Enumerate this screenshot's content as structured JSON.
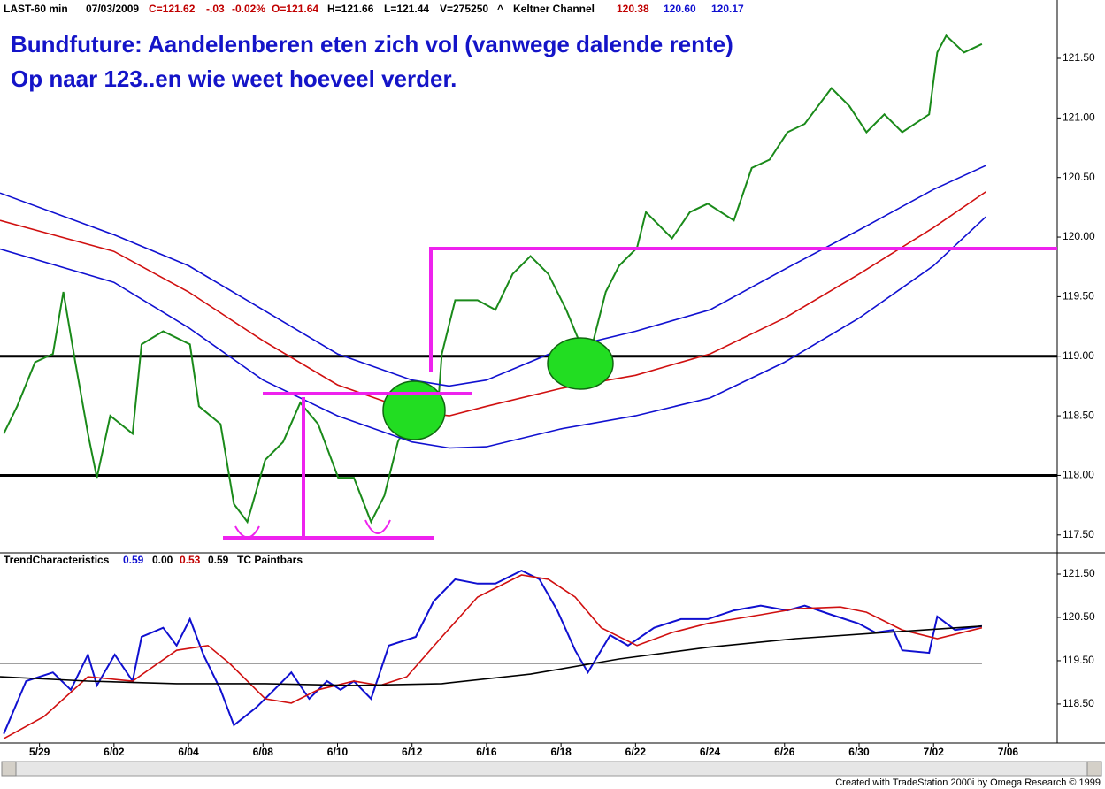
{
  "header": {
    "symbol": "LAST-60 min",
    "date": "07/03/2009",
    "close": "C=121.62",
    "change": "-.03",
    "change_pct": "-0.02%",
    "open": "O=121.64",
    "high": "H=121.66",
    "low": "L=121.44",
    "volume": "V=275250",
    "marker": "^",
    "study": "Keltner Channel",
    "mid": "120.38",
    "upper": "120.60",
    "lower": "120.17"
  },
  "chart_data": [
    {
      "type": "line",
      "annotations": [
        "Bundfuture: Aandelenberen eten zich vol (vanwege dalende rente)",
        "Op naar 123..en wie weet hoeveel verder."
      ],
      "xlim": [
        -0.53,
        13.66
      ],
      "ylim": [
        117.35,
        121.99
      ],
      "yticks": [
        {
          "value": 117.5,
          "label": "117.50"
        },
        {
          "value": 118,
          "label": "118.00"
        },
        {
          "value": 118.5,
          "label": "118.50"
        },
        {
          "value": 119,
          "label": "119.00"
        },
        {
          "value": 119.5,
          "label": "119.50"
        },
        {
          "value": 120,
          "label": "120.00"
        },
        {
          "value": 120.5,
          "label": "120.50"
        },
        {
          "value": 121,
          "label": "121.00"
        },
        {
          "value": 121.5,
          "label": "121.50"
        }
      ],
      "hlines": [
        119,
        118
      ],
      "series": [
        {
          "color": "#1a8a1a",
          "x": [
            -0.48,
            -0.3,
            -0.06,
            0.18,
            0.32,
            0.48,
            0.65,
            0.77,
            0.95,
            1.25,
            1.37,
            1.66,
            2.02,
            2.14,
            2.43,
            2.61,
            2.79,
            3.03,
            3.27,
            3.5,
            3.74,
            4.01,
            4.22,
            4.45,
            4.63,
            4.81,
            5.05,
            5.34,
            5.4,
            5.58,
            5.88,
            6.12,
            6.35,
            6.59,
            6.83,
            7.07,
            7.36,
            7.6,
            7.78,
            8.02,
            8.14,
            8.49,
            8.73,
            8.97,
            9.32,
            9.56,
            9.8,
            10.04,
            10.27,
            10.63,
            10.87,
            11.1,
            11.34,
            11.58,
            11.94,
            12.05,
            12.17,
            12.41,
            12.65
          ],
          "values": [
            118.35,
            118.58,
            118.95,
            119.02,
            119.54,
            118.95,
            118.35,
            117.98,
            118.5,
            118.35,
            119.1,
            119.21,
            119.1,
            118.58,
            118.43,
            117.76,
            117.61,
            118.13,
            118.28,
            118.61,
            118.43,
            117.98,
            117.98,
            117.61,
            117.83,
            118.28,
            118.58,
            118.5,
            119.02,
            119.47,
            119.47,
            119.39,
            119.69,
            119.84,
            119.69,
            119.39,
            118.95,
            119.54,
            119.76,
            119.91,
            120.21,
            119.99,
            120.21,
            120.28,
            120.14,
            120.58,
            120.65,
            120.88,
            120.95,
            121.25,
            121.1,
            120.88,
            121.03,
            120.88,
            121.03,
            121.55,
            121.69,
            121.55,
            121.62
          ]
        },
        {
          "color": "#1010d0",
          "x": [
            -0.53,
            1,
            2,
            3,
            4,
            5,
            5.5,
            6,
            7,
            8,
            9,
            10,
            11,
            12,
            12.7
          ],
          "values": [
            120.37,
            120.02,
            119.76,
            119.39,
            119.02,
            118.8,
            118.75,
            118.8,
            119.06,
            119.21,
            119.39,
            119.73,
            120.06,
            120.4,
            120.6
          ]
        },
        {
          "color": "#d01010",
          "x": [
            -0.53,
            1,
            2,
            3,
            4,
            5,
            5.5,
            6,
            7,
            8,
            9,
            10,
            11,
            12,
            12.7
          ],
          "values": [
            120.14,
            119.88,
            119.54,
            119.13,
            118.76,
            118.54,
            118.5,
            118.58,
            118.73,
            118.84,
            119.02,
            119.32,
            119.69,
            120.08,
            120.38
          ]
        },
        {
          "color": "#1010d0",
          "x": [
            -0.53,
            1,
            2,
            3,
            4,
            5,
            5.5,
            6,
            7,
            8,
            9,
            10,
            11,
            12,
            12.7
          ],
          "values": [
            119.9,
            119.62,
            119.24,
            118.8,
            118.5,
            118.28,
            118.23,
            118.24,
            118.39,
            118.5,
            118.65,
            118.95,
            119.32,
            119.76,
            120.17
          ]
        }
      ]
    },
    {
      "type": "line",
      "legend_text": [
        "TrendCharacteristics",
        "0.59",
        "0.00",
        "0.53",
        "0.59",
        "TC Paintbars"
      ],
      "xlim": [
        -0.53,
        13.66
      ],
      "ylim": [
        117.6,
        121.99
      ],
      "xticks": [
        {
          "value": 0,
          "label": "5/29"
        },
        {
          "value": 1,
          "label": "6/02"
        },
        {
          "value": 2,
          "label": "6/04"
        },
        {
          "value": 3,
          "label": "6/08"
        },
        {
          "value": 4,
          "label": "6/10"
        },
        {
          "value": 5,
          "label": "6/12"
        },
        {
          "value": 6,
          "label": "6/16"
        },
        {
          "value": 7,
          "label": "6/18"
        },
        {
          "value": 8,
          "label": "6/22"
        },
        {
          "value": 9,
          "label": "6/24"
        },
        {
          "value": 10,
          "label": "6/26"
        },
        {
          "value": 11,
          "label": "6/30"
        },
        {
          "value": 12,
          "label": "7/02"
        },
        {
          "value": 13,
          "label": "7/06"
        }
      ],
      "yticks": [
        {
          "value": 118.5,
          "label": "118.50"
        },
        {
          "value": 119.5,
          "label": "119.50"
        },
        {
          "value": 120.5,
          "label": "120.50"
        },
        {
          "value": 121.5,
          "label": "121.50"
        }
      ],
      "hlines": [
        119.44
      ],
      "series": [
        {
          "color": "#1010d0",
          "x": [
            -0.48,
            -0.18,
            0.18,
            0.42,
            0.65,
            0.77,
            1.01,
            1.25,
            1.37,
            1.66,
            1.84,
            2.02,
            2.2,
            2.43,
            2.61,
            2.91,
            3.15,
            3.38,
            3.62,
            3.86,
            4.04,
            4.22,
            4.45,
            4.69,
            5.05,
            5.29,
            5.58,
            5.88,
            6.12,
            6.47,
            6.71,
            6.95,
            7.19,
            7.36,
            7.66,
            7.9,
            8.25,
            8.61,
            8.97,
            9.32,
            9.68,
            10.04,
            10.27,
            10.63,
            10.99,
            11.22,
            11.46,
            11.58,
            11.94,
            12.05,
            12.29,
            12.65
          ],
          "values": [
            117.81,
            119.03,
            119.23,
            118.83,
            119.64,
            118.93,
            119.64,
            119.03,
            120.05,
            120.26,
            119.85,
            120.46,
            119.64,
            118.83,
            118.01,
            118.42,
            118.83,
            119.23,
            118.62,
            119.03,
            118.83,
            119.03,
            118.62,
            119.85,
            120.05,
            120.87,
            121.38,
            121.28,
            121.28,
            121.58,
            121.38,
            120.66,
            119.74,
            119.23,
            120.09,
            119.85,
            120.26,
            120.46,
            120.46,
            120.66,
            120.77,
            120.66,
            120.77,
            120.56,
            120.36,
            120.15,
            120.21,
            119.74,
            119.68,
            120.52,
            120.21,
            120.3
          ]
        },
        {
          "color": "#d01010",
          "x": [
            -0.48,
            0.06,
            0.65,
            1.25,
            1.84,
            2.26,
            2.55,
            3.03,
            3.38,
            3.74,
            4.22,
            4.57,
            4.93,
            5.4,
            5.88,
            6.47,
            6.83,
            7.19,
            7.54,
            8.02,
            8.49,
            8.97,
            9.68,
            10.15,
            10.75,
            11.1,
            11.58,
            12.05,
            12.65
          ],
          "values": [
            117.7,
            118.21,
            119.13,
            119.03,
            119.74,
            119.85,
            119.44,
            118.62,
            118.52,
            118.83,
            119.03,
            118.93,
            119.13,
            120.05,
            120.97,
            121.48,
            121.38,
            120.97,
            120.26,
            119.85,
            120.15,
            120.36,
            120.56,
            120.7,
            120.74,
            120.62,
            120.21,
            120.01,
            120.26
          ]
        },
        {
          "color": "#000000",
          "x": [
            -0.53,
            0.65,
            1.84,
            3.03,
            4.22,
            5.4,
            6.59,
            7.78,
            8.97,
            10.15,
            11.34,
            12.65
          ],
          "values": [
            119.13,
            119.03,
            118.97,
            118.97,
            118.93,
            118.97,
            119.19,
            119.54,
            119.81,
            120.01,
            120.15,
            120.3
          ]
        }
      ]
    }
  ],
  "footer": "Created with TradeStation 2000i by Omega Research © 1999"
}
